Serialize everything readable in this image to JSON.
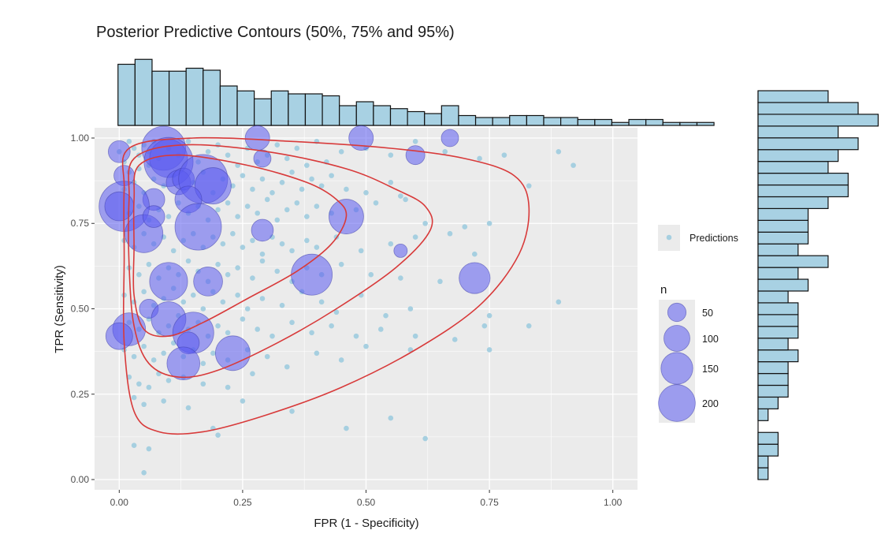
{
  "chart_data": {
    "type": "scatter",
    "title": "Posterior Predictive Contours (50%, 75% and 95%)",
    "xlabel": "FPR (1 - Specificity)",
    "ylabel": "TPR (Sensitivity)",
    "xlim": [
      -0.05,
      1.05
    ],
    "ylim": [
      -0.03,
      1.03
    ],
    "x_ticks": [
      "0.00",
      "0.25",
      "0.50",
      "0.75",
      "1.00"
    ],
    "y_ticks": [
      "0.00",
      "0.25",
      "0.50",
      "0.75",
      "1.00"
    ],
    "grid": true,
    "colors": {
      "panel": "#ebebeb",
      "grid": "#ffffff",
      "prediction": "#a6cfe0",
      "study": "#5b5bf0",
      "contour": "#d83a3a",
      "hist_fill": "#a8d1e3",
      "hist_stroke": "#111111"
    },
    "legend": {
      "placement": "right",
      "predictions_label": "Predictions",
      "size_title": "n",
      "size_labels": [
        "50",
        "100",
        "150",
        "200"
      ],
      "size_values": [
        50,
        100,
        150,
        200
      ]
    },
    "predictions": [
      [
        0.0,
        0.96
      ],
      [
        0.01,
        0.93
      ],
      [
        0.02,
        0.99
      ],
      [
        0.03,
        0.97
      ],
      [
        0.04,
        0.95
      ],
      [
        0.05,
        0.98
      ],
      [
        0.06,
        0.96
      ],
      [
        0.07,
        0.99
      ],
      [
        0.02,
        0.9
      ],
      [
        0.04,
        0.91
      ],
      [
        0.06,
        0.92
      ],
      [
        0.08,
        0.94
      ],
      [
        0.1,
        0.97
      ],
      [
        0.12,
        0.95
      ],
      [
        0.14,
        0.99
      ],
      [
        0.16,
        0.93
      ],
      [
        0.18,
        0.96
      ],
      [
        0.2,
        0.98
      ],
      [
        0.22,
        0.95
      ],
      [
        0.24,
        0.92
      ],
      [
        0.26,
        0.97
      ],
      [
        0.28,
        0.93
      ],
      [
        0.3,
        0.95
      ],
      [
        0.32,
        0.98
      ],
      [
        0.34,
        0.94
      ],
      [
        0.36,
        0.97
      ],
      [
        0.38,
        0.92
      ],
      [
        0.4,
        0.99
      ],
      [
        0.42,
        0.93
      ],
      [
        0.45,
        0.96
      ],
      [
        0.5,
        0.97
      ],
      [
        0.55,
        0.95
      ],
      [
        0.6,
        0.99
      ],
      [
        0.66,
        0.96
      ],
      [
        0.73,
        0.94
      ],
      [
        0.78,
        0.95
      ],
      [
        0.89,
        0.96
      ],
      [
        0.92,
        0.92
      ],
      [
        0.01,
        0.85
      ],
      [
        0.03,
        0.87
      ],
      [
        0.05,
        0.84
      ],
      [
        0.07,
        0.88
      ],
      [
        0.09,
        0.86
      ],
      [
        0.11,
        0.89
      ],
      [
        0.13,
        0.85
      ],
      [
        0.15,
        0.87
      ],
      [
        0.17,
        0.9
      ],
      [
        0.19,
        0.84
      ],
      [
        0.21,
        0.88
      ],
      [
        0.23,
        0.86
      ],
      [
        0.25,
        0.89
      ],
      [
        0.27,
        0.85
      ],
      [
        0.29,
        0.88
      ],
      [
        0.31,
        0.84
      ],
      [
        0.33,
        0.87
      ],
      [
        0.35,
        0.9
      ],
      [
        0.37,
        0.85
      ],
      [
        0.39,
        0.88
      ],
      [
        0.41,
        0.86
      ],
      [
        0.43,
        0.89
      ],
      [
        0.46,
        0.85
      ],
      [
        0.5,
        0.84
      ],
      [
        0.55,
        0.87
      ],
      [
        0.57,
        0.83
      ],
      [
        0.83,
        0.86
      ],
      [
        0.02,
        0.78
      ],
      [
        0.04,
        0.8
      ],
      [
        0.06,
        0.76
      ],
      [
        0.08,
        0.79
      ],
      [
        0.1,
        0.77
      ],
      [
        0.12,
        0.81
      ],
      [
        0.14,
        0.78
      ],
      [
        0.16,
        0.8
      ],
      [
        0.18,
        0.76
      ],
      [
        0.2,
        0.79
      ],
      [
        0.22,
        0.81
      ],
      [
        0.24,
        0.77
      ],
      [
        0.26,
        0.8
      ],
      [
        0.28,
        0.78
      ],
      [
        0.3,
        0.82
      ],
      [
        0.32,
        0.76
      ],
      [
        0.34,
        0.79
      ],
      [
        0.36,
        0.81
      ],
      [
        0.38,
        0.77
      ],
      [
        0.4,
        0.8
      ],
      [
        0.43,
        0.78
      ],
      [
        0.48,
        0.79
      ],
      [
        0.52,
        0.81
      ],
      [
        0.58,
        0.82
      ],
      [
        0.62,
        0.75
      ],
      [
        0.7,
        0.74
      ],
      [
        0.75,
        0.75
      ],
      [
        0.01,
        0.7
      ],
      [
        0.03,
        0.68
      ],
      [
        0.05,
        0.72
      ],
      [
        0.07,
        0.69
      ],
      [
        0.09,
        0.71
      ],
      [
        0.11,
        0.67
      ],
      [
        0.13,
        0.7
      ],
      [
        0.15,
        0.72
      ],
      [
        0.17,
        0.68
      ],
      [
        0.19,
        0.71
      ],
      [
        0.21,
        0.69
      ],
      [
        0.23,
        0.72
      ],
      [
        0.25,
        0.68
      ],
      [
        0.27,
        0.7
      ],
      [
        0.29,
        0.66
      ],
      [
        0.31,
        0.71
      ],
      [
        0.33,
        0.69
      ],
      [
        0.35,
        0.67
      ],
      [
        0.38,
        0.7
      ],
      [
        0.4,
        0.68
      ],
      [
        0.44,
        0.71
      ],
      [
        0.49,
        0.67
      ],
      [
        0.55,
        0.69
      ],
      [
        0.6,
        0.71
      ],
      [
        0.67,
        0.72
      ],
      [
        0.72,
        0.66
      ],
      [
        0.02,
        0.62
      ],
      [
        0.04,
        0.6
      ],
      [
        0.06,
        0.63
      ],
      [
        0.08,
        0.59
      ],
      [
        0.1,
        0.62
      ],
      [
        0.12,
        0.6
      ],
      [
        0.14,
        0.64
      ],
      [
        0.16,
        0.61
      ],
      [
        0.18,
        0.58
      ],
      [
        0.2,
        0.63
      ],
      [
        0.22,
        0.6
      ],
      [
        0.24,
        0.62
      ],
      [
        0.27,
        0.59
      ],
      [
        0.29,
        0.64
      ],
      [
        0.32,
        0.61
      ],
      [
        0.35,
        0.58
      ],
      [
        0.38,
        0.62
      ],
      [
        0.41,
        0.6
      ],
      [
        0.45,
        0.63
      ],
      [
        0.51,
        0.6
      ],
      [
        0.57,
        0.59
      ],
      [
        0.65,
        0.58
      ],
      [
        0.01,
        0.54
      ],
      [
        0.03,
        0.52
      ],
      [
        0.05,
        0.55
      ],
      [
        0.07,
        0.51
      ],
      [
        0.09,
        0.53
      ],
      [
        0.11,
        0.56
      ],
      [
        0.13,
        0.52
      ],
      [
        0.15,
        0.54
      ],
      [
        0.17,
        0.5
      ],
      [
        0.19,
        0.55
      ],
      [
        0.21,
        0.52
      ],
      [
        0.24,
        0.54
      ],
      [
        0.26,
        0.5
      ],
      [
        0.29,
        0.53
      ],
      [
        0.33,
        0.51
      ],
      [
        0.37,
        0.55
      ],
      [
        0.41,
        0.52
      ],
      [
        0.44,
        0.49
      ],
      [
        0.49,
        0.54
      ],
      [
        0.54,
        0.48
      ],
      [
        0.59,
        0.5
      ],
      [
        0.75,
        0.48
      ],
      [
        0.89,
        0.52
      ],
      [
        0.02,
        0.46
      ],
      [
        0.04,
        0.44
      ],
      [
        0.06,
        0.47
      ],
      [
        0.08,
        0.43
      ],
      [
        0.1,
        0.45
      ],
      [
        0.12,
        0.48
      ],
      [
        0.14,
        0.44
      ],
      [
        0.16,
        0.46
      ],
      [
        0.18,
        0.42
      ],
      [
        0.2,
        0.45
      ],
      [
        0.22,
        0.43
      ],
      [
        0.25,
        0.47
      ],
      [
        0.28,
        0.44
      ],
      [
        0.31,
        0.42
      ],
      [
        0.35,
        0.46
      ],
      [
        0.39,
        0.43
      ],
      [
        0.43,
        0.45
      ],
      [
        0.48,
        0.42
      ],
      [
        0.53,
        0.44
      ],
      [
        0.6,
        0.42
      ],
      [
        0.68,
        0.41
      ],
      [
        0.74,
        0.45
      ],
      [
        0.83,
        0.45
      ],
      [
        0.01,
        0.38
      ],
      [
        0.03,
        0.36
      ],
      [
        0.05,
        0.39
      ],
      [
        0.07,
        0.35
      ],
      [
        0.09,
        0.37
      ],
      [
        0.11,
        0.4
      ],
      [
        0.13,
        0.36
      ],
      [
        0.15,
        0.38
      ],
      [
        0.17,
        0.34
      ],
      [
        0.19,
        0.37
      ],
      [
        0.22,
        0.35
      ],
      [
        0.26,
        0.38
      ],
      [
        0.3,
        0.36
      ],
      [
        0.34,
        0.33
      ],
      [
        0.4,
        0.37
      ],
      [
        0.45,
        0.35
      ],
      [
        0.5,
        0.39
      ],
      [
        0.59,
        0.38
      ],
      [
        0.75,
        0.38
      ],
      [
        0.02,
        0.3
      ],
      [
        0.04,
        0.28
      ],
      [
        0.06,
        0.27
      ],
      [
        0.08,
        0.31
      ],
      [
        0.1,
        0.29
      ],
      [
        0.13,
        0.3
      ],
      [
        0.17,
        0.28
      ],
      [
        0.22,
        0.27
      ],
      [
        0.27,
        0.31
      ],
      [
        0.03,
        0.24
      ],
      [
        0.05,
        0.22
      ],
      [
        0.09,
        0.23
      ],
      [
        0.14,
        0.21
      ],
      [
        0.25,
        0.23
      ],
      [
        0.35,
        0.2
      ],
      [
        0.55,
        0.18
      ],
      [
        0.19,
        0.15
      ],
      [
        0.46,
        0.15
      ],
      [
        0.62,
        0.12
      ],
      [
        0.03,
        0.1
      ],
      [
        0.06,
        0.09
      ],
      [
        0.2,
        0.13
      ],
      [
        0.05,
        0.02
      ]
    ],
    "studies": [
      {
        "x": 0.0,
        "y": 0.96,
        "n": 40
      },
      {
        "x": 0.01,
        "y": 0.89,
        "n": 35
      },
      {
        "x": 0.09,
        "y": 0.97,
        "n": 160
      },
      {
        "x": 0.1,
        "y": 0.94,
        "n": 120
      },
      {
        "x": 0.1,
        "y": 0.93,
        "n": 200
      },
      {
        "x": 0.12,
        "y": 0.87,
        "n": 50
      },
      {
        "x": 0.13,
        "y": 0.88,
        "n": 40
      },
      {
        "x": 0.17,
        "y": 0.88,
        "n": 200
      },
      {
        "x": 0.19,
        "y": 0.86,
        "n": 110
      },
      {
        "x": 0.07,
        "y": 0.82,
        "n": 40
      },
      {
        "x": 0.14,
        "y": 0.82,
        "n": 60
      },
      {
        "x": 0.01,
        "y": 0.8,
        "n": 210
      },
      {
        "x": 0.0,
        "y": 0.8,
        "n": 70
      },
      {
        "x": 0.05,
        "y": 0.72,
        "n": 120
      },
      {
        "x": 0.07,
        "y": 0.77,
        "n": 40
      },
      {
        "x": 0.16,
        "y": 0.74,
        "n": 180
      },
      {
        "x": 0.29,
        "y": 0.73,
        "n": 40
      },
      {
        "x": 0.46,
        "y": 0.77,
        "n": 100
      },
      {
        "x": 0.28,
        "y": 1.0,
        "n": 50
      },
      {
        "x": 0.49,
        "y": 1.0,
        "n": 50
      },
      {
        "x": 0.67,
        "y": 1.0,
        "n": 25
      },
      {
        "x": 0.6,
        "y": 0.95,
        "n": 30
      },
      {
        "x": 0.29,
        "y": 0.94,
        "n": 25
      },
      {
        "x": 0.57,
        "y": 0.67,
        "n": 15
      },
      {
        "x": 0.1,
        "y": 0.58,
        "n": 120
      },
      {
        "x": 0.18,
        "y": 0.58,
        "n": 70
      },
      {
        "x": 0.39,
        "y": 0.6,
        "n": 140
      },
      {
        "x": 0.72,
        "y": 0.59,
        "n": 80
      },
      {
        "x": 0.06,
        "y": 0.5,
        "n": 30
      },
      {
        "x": 0.1,
        "y": 0.47,
        "n": 100
      },
      {
        "x": 0.02,
        "y": 0.44,
        "n": 90
      },
      {
        "x": 0.0,
        "y": 0.42,
        "n": 60
      },
      {
        "x": 0.15,
        "y": 0.43,
        "n": 140
      },
      {
        "x": 0.14,
        "y": 0.4,
        "n": 40
      },
      {
        "x": 0.13,
        "y": 0.34,
        "n": 90
      },
      {
        "x": 0.23,
        "y": 0.37,
        "n": 100
      }
    ],
    "contours": [
      {
        "level": "50%",
        "pts": [
          [
            0.04,
            0.92
          ],
          [
            0.12,
            0.95
          ],
          [
            0.26,
            0.92
          ],
          [
            0.38,
            0.87
          ],
          [
            0.44,
            0.82
          ],
          [
            0.46,
            0.77
          ],
          [
            0.43,
            0.69
          ],
          [
            0.36,
            0.61
          ],
          [
            0.26,
            0.53
          ],
          [
            0.17,
            0.46
          ],
          [
            0.1,
            0.42
          ],
          [
            0.05,
            0.44
          ],
          [
            0.03,
            0.54
          ],
          [
            0.03,
            0.68
          ],
          [
            0.03,
            0.82
          ]
        ]
      },
      {
        "level": "75%",
        "pts": [
          [
            0.03,
            0.94
          ],
          [
            0.13,
            0.98
          ],
          [
            0.3,
            0.96
          ],
          [
            0.46,
            0.91
          ],
          [
            0.56,
            0.85
          ],
          [
            0.62,
            0.8
          ],
          [
            0.63,
            0.73
          ],
          [
            0.56,
            0.62
          ],
          [
            0.44,
            0.5
          ],
          [
            0.32,
            0.4
          ],
          [
            0.2,
            0.32
          ],
          [
            0.12,
            0.3
          ],
          [
            0.06,
            0.34
          ],
          [
            0.03,
            0.45
          ],
          [
            0.02,
            0.63
          ],
          [
            0.02,
            0.82
          ]
        ]
      },
      {
        "level": "95%",
        "pts": [
          [
            0.02,
            0.97
          ],
          [
            0.15,
            1.0
          ],
          [
            0.35,
            0.99
          ],
          [
            0.55,
            0.97
          ],
          [
            0.7,
            0.94
          ],
          [
            0.8,
            0.89
          ],
          [
            0.83,
            0.8
          ],
          [
            0.81,
            0.66
          ],
          [
            0.73,
            0.51
          ],
          [
            0.6,
            0.38
          ],
          [
            0.45,
            0.27
          ],
          [
            0.3,
            0.19
          ],
          [
            0.17,
            0.14
          ],
          [
            0.08,
            0.14
          ],
          [
            0.03,
            0.2
          ],
          [
            0.01,
            0.4
          ],
          [
            0.01,
            0.65
          ],
          [
            0.01,
            0.85
          ]
        ]
      }
    ],
    "marginal_x_histogram": {
      "bin_width": 0.0345,
      "start": -0.0025,
      "counts": [
        62,
        67,
        55,
        55,
        58,
        56,
        40,
        35,
        27,
        35,
        32,
        32,
        30,
        20,
        24,
        20,
        17,
        14,
        12,
        20,
        10,
        8,
        8,
        10,
        10,
        8,
        8,
        6,
        6,
        3,
        6,
        6,
        3,
        3,
        3,
        0,
        0
      ]
    },
    "marginal_y_histogram": {
      "bin_width": 0.0345,
      "start": 0.0,
      "counts": [
        1,
        1,
        2,
        2,
        0,
        1,
        2,
        3,
        3,
        3,
        4,
        3,
        4,
        4,
        4,
        3,
        5,
        4,
        7,
        4,
        5,
        5,
        5,
        7,
        9,
        9,
        7,
        8,
        10,
        8,
        12,
        10,
        7
      ]
    }
  }
}
